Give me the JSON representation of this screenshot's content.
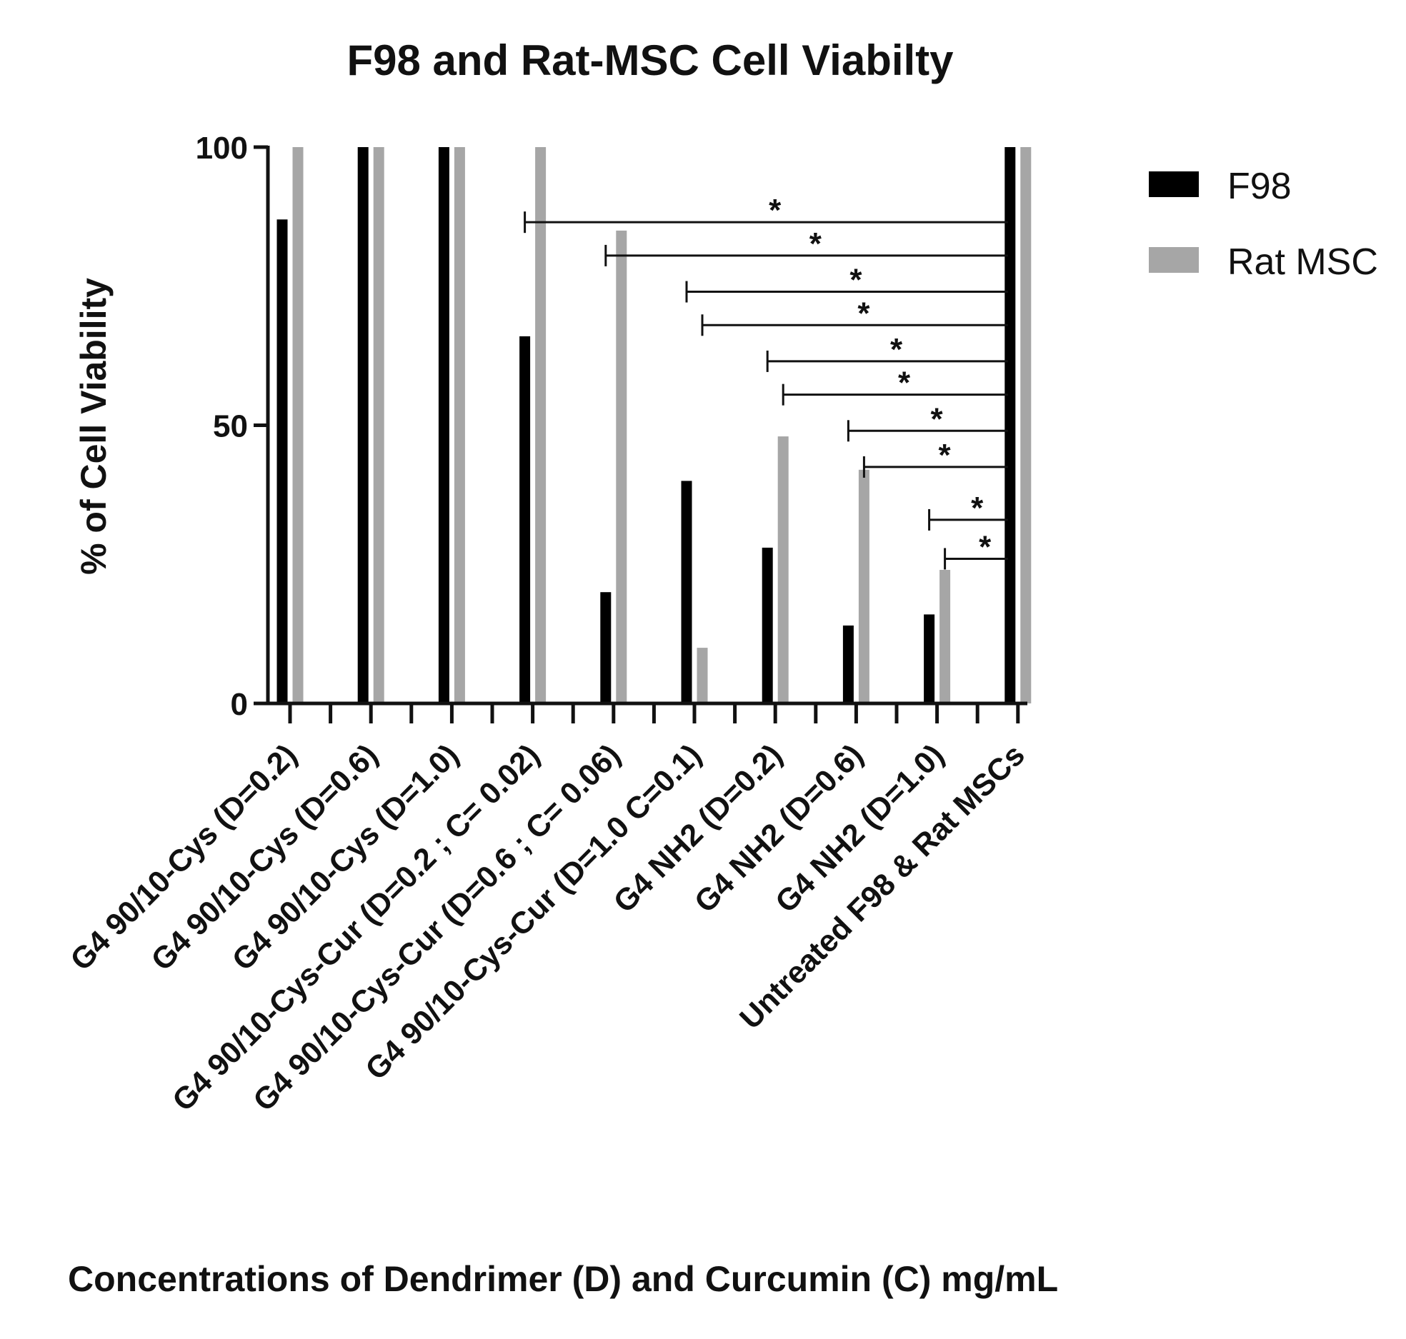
{
  "chart_data": {
    "type": "bar",
    "title": "F98 and Rat-MSC Cell  Viabilty",
    "xlabel": "Concentrations of Dendrimer (D) and  Curcumin (C) mg/mL",
    "ylabel": "% of Cell Viability",
    "ylim": [
      0,
      100
    ],
    "yticks": [
      0,
      50,
      100
    ],
    "grid": false,
    "legend_position": "top-right",
    "categories": [
      "G4 90/10-Cys (D=0.2)",
      "G4 90/10-Cys (D=0.6)",
      "G4 90/10-Cys (D=1.0)",
      "G4 90/10-Cys-Cur (D=0.2 ; C= 0.02)",
      "G4 90/10-Cys-Cur (D=0.6 ; C= 0.06)",
      "G4 90/10-Cys-Cur (D=1.0 C=0.1)",
      "G4 NH2 (D=0.2)",
      "G4 NH2 (D=0.6)",
      "G4 NH2 (D=1.0)",
      "Untreated F98 & Rat MSCs"
    ],
    "series": [
      {
        "name": "F98",
        "color": "#000000",
        "values": [
          87,
          100,
          100,
          66,
          20,
          40,
          28,
          14,
          16,
          100
        ]
      },
      {
        "name": "Rat MSC",
        "color": "#a6a6a6",
        "values": [
          100,
          100,
          100,
          100,
          85,
          10,
          48,
          42,
          24,
          100
        ]
      }
    ],
    "significance": [
      {
        "from_category": 3,
        "from_series": 0,
        "to_category": 9,
        "y": 86.5,
        "label": "*"
      },
      {
        "from_category": 4,
        "from_series": 0,
        "to_category": 9,
        "y": 80.5,
        "label": "*"
      },
      {
        "from_category": 5,
        "from_series": 0,
        "to_category": 9,
        "y": 74,
        "label": "*"
      },
      {
        "from_category": 5,
        "from_series": 1,
        "to_category": 9,
        "y": 68,
        "label": "*"
      },
      {
        "from_category": 6,
        "from_series": 0,
        "to_category": 9,
        "y": 61.5,
        "label": "*"
      },
      {
        "from_category": 6,
        "from_series": 1,
        "to_category": 9,
        "y": 55.5,
        "label": "*"
      },
      {
        "from_category": 7,
        "from_series": 0,
        "to_category": 9,
        "y": 49,
        "label": "*"
      },
      {
        "from_category": 7,
        "from_series": 1,
        "to_category": 9,
        "y": 42.5,
        "label": "*"
      },
      {
        "from_category": 8,
        "from_series": 0,
        "to_category": 9,
        "y": 33,
        "label": "*"
      },
      {
        "from_category": 8,
        "from_series": 1,
        "to_category": 9,
        "y": 26,
        "label": "*"
      }
    ]
  }
}
